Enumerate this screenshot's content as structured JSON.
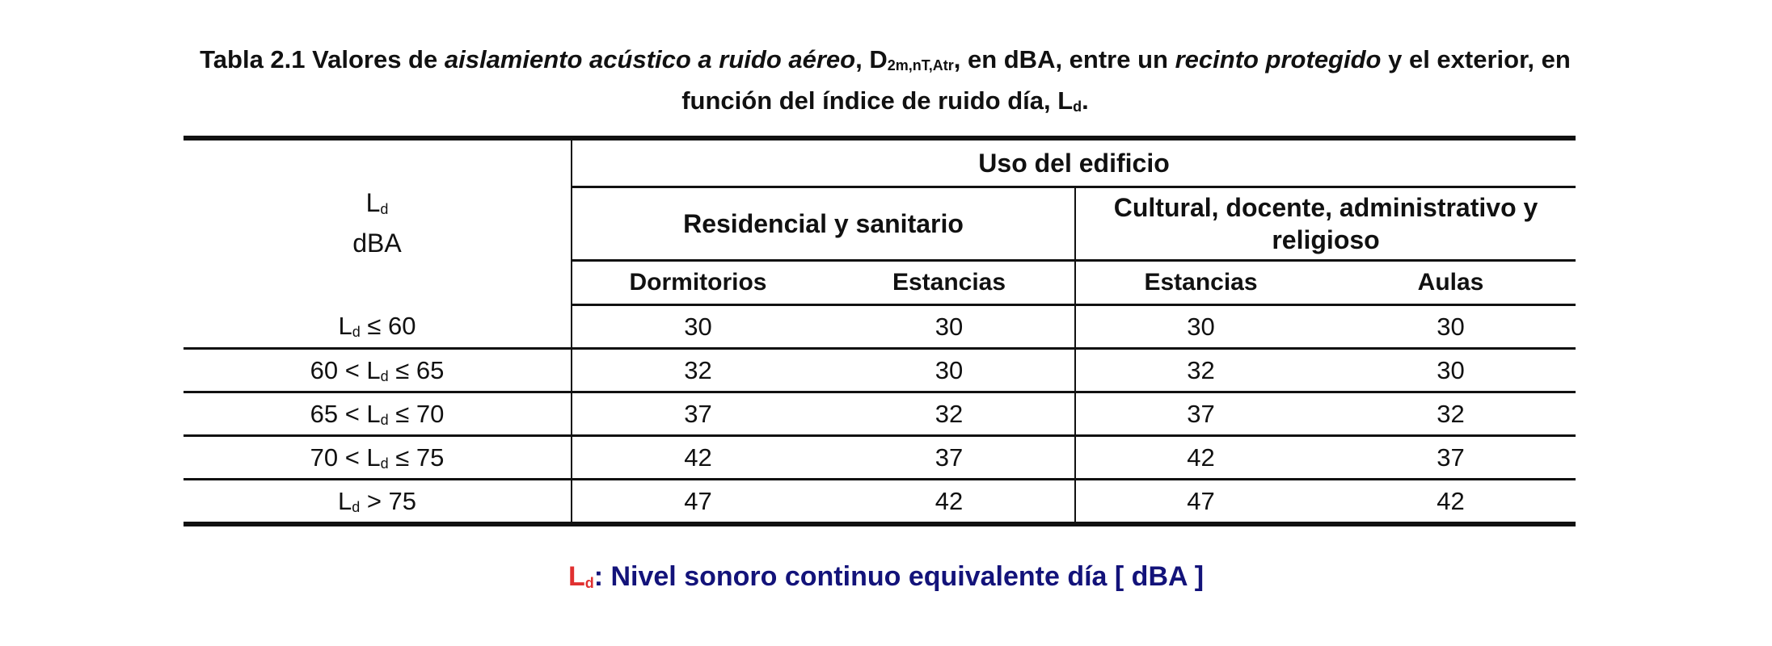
{
  "caption": {
    "prefix": "Tabla 2.1 Valores de ",
    "italic1": "aislamiento acústico a ruido aéreo",
    "mid1": ", D",
    "d_sub": "2m,nT,Atr",
    "mid2": ", en dBA, entre un ",
    "italic2": "recinto protegido",
    "mid3": " y el exterior, en función del índice de ruido día, L",
    "l_sub": "d",
    "end": "."
  },
  "table": {
    "row_header_symbol": "L",
    "row_header_sub": "d",
    "row_header_unit": "dBA",
    "group_title": "Uso del edificio",
    "subgroups": [
      "Residencial y sanitario",
      "Cultural, docente, administrativo y religioso"
    ],
    "columns": [
      "Dormitorios",
      "Estancias",
      "Estancias",
      "Aulas"
    ],
    "rows": [
      {
        "pre": "",
        "sym": "L",
        "sub": "d",
        "post": " ≤ 60",
        "values": [
          "30",
          "30",
          "30",
          "30"
        ]
      },
      {
        "pre": "60 < ",
        "sym": "L",
        "sub": "d",
        "post": " ≤ 65",
        "values": [
          "32",
          "30",
          "32",
          "30"
        ]
      },
      {
        "pre": "65 < ",
        "sym": "L",
        "sub": "d",
        "post": " ≤ 70",
        "values": [
          "37",
          "32",
          "37",
          "32"
        ]
      },
      {
        "pre": "70 < ",
        "sym": "L",
        "sub": "d",
        "post": " ≤ 75",
        "values": [
          "42",
          "37",
          "42",
          "37"
        ]
      },
      {
        "pre": "",
        "sym": "L",
        "sub": "d",
        "post": " > 75",
        "values": [
          "47",
          "42",
          "47",
          "42"
        ]
      }
    ]
  },
  "footnote": {
    "symbol": "L",
    "symbol_sub": "d",
    "text": ": Nivel sonoro continuo equivalente día [ dBA ]"
  }
}
